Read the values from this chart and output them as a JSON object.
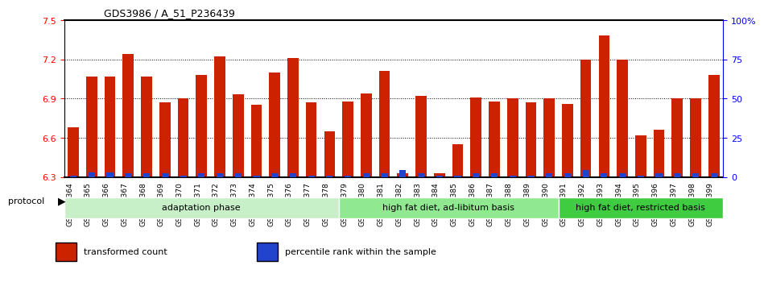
{
  "title": "GDS3986 / A_51_P236439",
  "samples": [
    "GSM672364",
    "GSM672365",
    "GSM672366",
    "GSM672367",
    "GSM672368",
    "GSM672369",
    "GSM672370",
    "GSM672371",
    "GSM672372",
    "GSM672373",
    "GSM672374",
    "GSM672375",
    "GSM672376",
    "GSM672377",
    "GSM672378",
    "GSM672379",
    "GSM672380",
    "GSM672381",
    "GSM672382",
    "GSM672383",
    "GSM672384",
    "GSM672385",
    "GSM672386",
    "GSM672387",
    "GSM672388",
    "GSM672389",
    "GSM672390",
    "GSM672391",
    "GSM672392",
    "GSM672393",
    "GSM672394",
    "GSM672395",
    "GSM672396",
    "GSM672397",
    "GSM672398",
    "GSM672399"
  ],
  "red_values": [
    6.68,
    7.07,
    7.07,
    7.24,
    7.07,
    6.87,
    6.9,
    7.08,
    7.22,
    6.93,
    6.85,
    7.1,
    7.21,
    6.87,
    6.65,
    6.88,
    6.94,
    7.11,
    6.33,
    6.92,
    6.33,
    6.55,
    6.91,
    6.88,
    6.9,
    6.87,
    6.9,
    6.86,
    7.2,
    7.38,
    7.2,
    6.62,
    6.66,
    6.9,
    6.9,
    7.08
  ],
  "blue_values": [
    2,
    10,
    10,
    8,
    8,
    8,
    2,
    8,
    8,
    8,
    2,
    8,
    8,
    2,
    2,
    2,
    8,
    8,
    14,
    8,
    2,
    2,
    8,
    8,
    2,
    2,
    8,
    8,
    15,
    8,
    8,
    2,
    8,
    8,
    8,
    8
  ],
  "ylim_left": [
    6.3,
    7.5
  ],
  "ylim_right": [
    0,
    100
  ],
  "yticks_left": [
    6.3,
    6.6,
    6.9,
    7.2,
    7.5
  ],
  "yticks_right": [
    0,
    25,
    50,
    75,
    100
  ],
  "ytick_labels_right": [
    "0",
    "25",
    "50",
    "75",
    "100%"
  ],
  "groups": [
    {
      "label": "adaptation phase",
      "start": 0,
      "end": 15,
      "color": "#c8f0c8"
    },
    {
      "label": "high fat diet, ad-libitum basis",
      "start": 15,
      "end": 27,
      "color": "#90e890"
    },
    {
      "label": "high fat diet, restricted basis",
      "start": 27,
      "end": 36,
      "color": "#40cc40"
    }
  ],
  "bar_color": "#cc2200",
  "blue_color": "#2244cc",
  "base": 6.3,
  "legend_items": [
    {
      "label": "transformed count",
      "color": "#cc2200"
    },
    {
      "label": "percentile rank within the sample",
      "color": "#2244cc"
    }
  ],
  "protocol_label": "protocol",
  "bg_color": "#e8e8e8"
}
